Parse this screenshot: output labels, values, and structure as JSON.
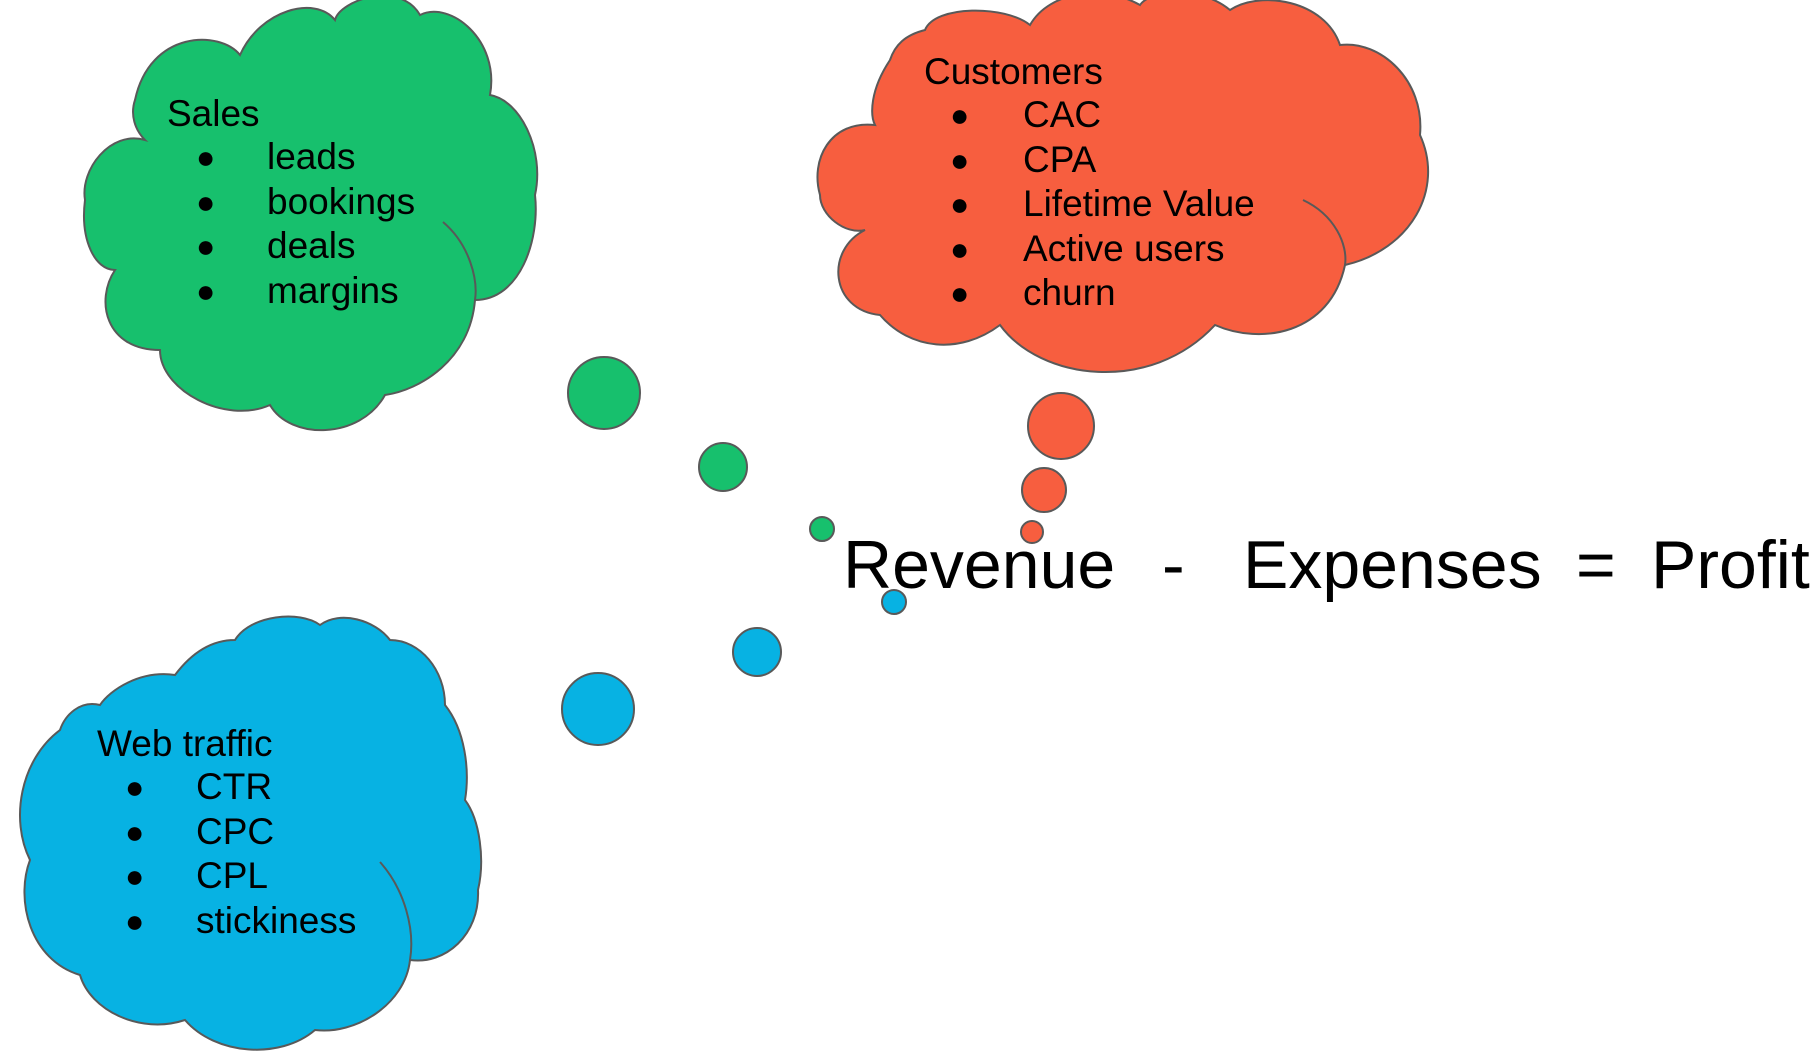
{
  "colors": {
    "sales": "#17c06d",
    "customers": "#f75e3f",
    "web_traffic": "#07b2e3",
    "outline": "#595959",
    "text": "#000000"
  },
  "clouds": {
    "sales": {
      "title": "Sales",
      "items": [
        "leads",
        "bookings",
        "deals",
        "margins"
      ]
    },
    "customers": {
      "title": "Customers",
      "items": [
        "CAC",
        "CPA",
        "Lifetime Value",
        "Active users",
        "churn"
      ]
    },
    "web_traffic": {
      "title": "Web traffic",
      "items": [
        "CTR",
        "CPC",
        "CPL",
        "stickiness"
      ]
    }
  },
  "bullet_glyph": "●",
  "equation": {
    "revenue": "Revenue",
    "minus": "-",
    "expenses": "Expenses",
    "equals": "=",
    "profit": "Profit"
  }
}
